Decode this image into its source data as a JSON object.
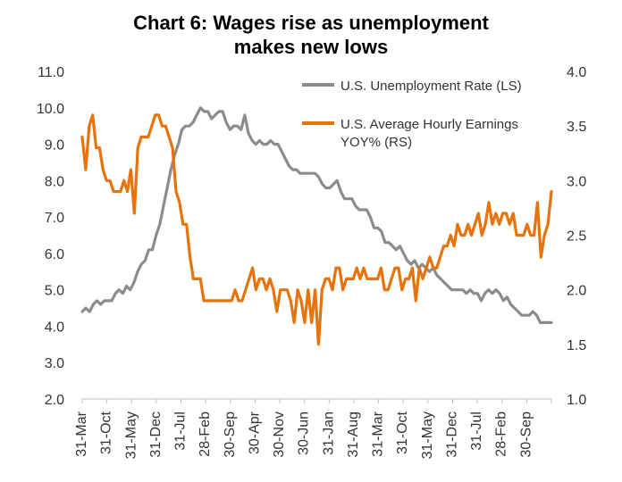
{
  "chart_data": {
    "type": "line",
    "title_lines": [
      "Chart 6: Wages rise as unemployment",
      "makes new lows"
    ],
    "x_ticks": [
      "31-Mar",
      "31-Oct",
      "31-May",
      "31-Dec",
      "31-Jul",
      "28-Feb",
      "30-Sep",
      "30-Apr",
      "30-Nov",
      "30-Jun",
      "31-Jan",
      "31-Aug",
      "31-Mar",
      "31-Oct",
      "31-May",
      "31-Dec",
      "31-Jul",
      "28-Feb",
      "30-Sep"
    ],
    "y_left": {
      "min": 2.0,
      "max": 11.0,
      "ticks": [
        "2.0",
        "3.0",
        "4.0",
        "5.0",
        "6.0",
        "7.0",
        "8.0",
        "9.0",
        "10.0",
        "11.0"
      ]
    },
    "y_right": {
      "min": 1.0,
      "max": 4.0,
      "ticks": [
        "1.0",
        "1.5",
        "2.0",
        "2.5",
        "3.0",
        "3.5",
        "4.0"
      ]
    },
    "legend_position": "top-right",
    "series": [
      {
        "name": "U.S. Unemployment Rate (LS)",
        "axis": "left",
        "color": "#8c8c8c",
        "values": [
          4.4,
          4.5,
          4.4,
          4.6,
          4.7,
          4.6,
          4.7,
          4.7,
          4.7,
          4.9,
          5.0,
          4.9,
          5.1,
          5.0,
          5.2,
          5.5,
          5.7,
          5.8,
          6.1,
          6.1,
          6.5,
          6.8,
          7.3,
          7.8,
          8.3,
          8.7,
          9.0,
          9.4,
          9.5,
          9.5,
          9.6,
          9.8,
          10.0,
          9.9,
          9.9,
          9.7,
          9.8,
          9.9,
          9.9,
          9.6,
          9.4,
          9.5,
          9.5,
          9.4,
          9.8,
          9.3,
          9.1,
          9.0,
          9.1,
          9.0,
          9.0,
          9.1,
          9.0,
          9.0,
          8.8,
          8.6,
          8.4,
          8.3,
          8.3,
          8.2,
          8.2,
          8.2,
          8.2,
          8.2,
          8.1,
          7.9,
          7.8,
          7.8,
          7.9,
          8.0,
          7.7,
          7.5,
          7.5,
          7.5,
          7.3,
          7.2,
          7.2,
          7.2,
          7.0,
          6.7,
          6.7,
          6.6,
          6.3,
          6.3,
          6.2,
          6.1,
          6.2,
          6.0,
          5.8,
          5.7,
          5.8,
          5.6,
          5.7,
          5.6,
          5.5,
          5.6,
          5.4,
          5.3,
          5.2,
          5.1,
          5.0,
          5.0,
          5.0,
          5.0,
          4.9,
          5.0,
          4.9,
          4.9,
          4.7,
          4.9,
          5.0,
          4.9,
          5.0,
          4.9,
          4.7,
          4.8,
          4.6,
          4.5,
          4.4,
          4.3,
          4.3,
          4.3,
          4.4,
          4.3,
          4.1,
          4.1,
          4.1,
          4.1
        ]
      },
      {
        "name": "U.S. Average Hourly Earnings YOY% (RS)",
        "axis": "right",
        "color": "#e8720c",
        "values": [
          3.4,
          3.1,
          3.5,
          3.6,
          3.3,
          3.3,
          3.1,
          3.0,
          3.0,
          2.9,
          2.9,
          2.9,
          3.0,
          2.9,
          3.1,
          2.7,
          3.3,
          3.4,
          3.4,
          3.4,
          3.5,
          3.6,
          3.6,
          3.5,
          3.5,
          3.4,
          3.3,
          2.9,
          2.8,
          2.6,
          2.6,
          2.3,
          2.1,
          2.1,
          2.1,
          1.9,
          1.9,
          1.9,
          1.9,
          1.9,
          1.9,
          1.9,
          1.9,
          1.9,
          2.0,
          1.9,
          1.9,
          2.0,
          2.1,
          2.2,
          2.0,
          2.1,
          2.1,
          2.0,
          2.1,
          2.0,
          1.8,
          2.0,
          2.0,
          2.0,
          1.9,
          1.7,
          2.0,
          1.9,
          1.7,
          2.0,
          1.7,
          2.0,
          1.5,
          2.0,
          2.1,
          2.1,
          2.0,
          2.2,
          2.2,
          2.0,
          2.1,
          2.1,
          2.1,
          2.2,
          2.1,
          2.2,
          2.1,
          2.1,
          2.1,
          2.1,
          2.2,
          2.0,
          2.0,
          2.1,
          2.2,
          2.2,
          2.0,
          2.1,
          2.1,
          2.2,
          1.9,
          2.2,
          2.1,
          2.2,
          2.3,
          2.2,
          2.2,
          2.3,
          2.4,
          2.4,
          2.5,
          2.4,
          2.6,
          2.5,
          2.5,
          2.6,
          2.5,
          2.6,
          2.7,
          2.5,
          2.6,
          2.8,
          2.6,
          2.7,
          2.6,
          2.7,
          2.7,
          2.6,
          2.7,
          2.5,
          2.5,
          2.5,
          2.6,
          2.5,
          2.5,
          2.8,
          2.3,
          2.5,
          2.6,
          2.9
        ]
      }
    ]
  }
}
